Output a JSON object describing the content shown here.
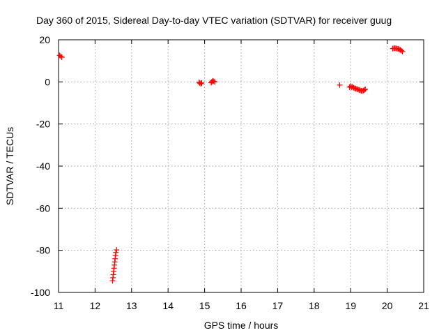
{
  "chart_data": {
    "type": "scatter",
    "title": "Day 360 of 2015, Sidereal Day-to-day VTEC variation (SDTVAR) for receiver guug",
    "xlabel": "GPS time / hours",
    "ylabel": "SDTVAR / TECUs",
    "xlim": [
      11,
      21
    ],
    "ylim": [
      -100,
      20
    ],
    "xticks": [
      11,
      12,
      13,
      14,
      15,
      16,
      17,
      18,
      19,
      20,
      21
    ],
    "yticks": [
      -100,
      -80,
      -60,
      -40,
      -20,
      0,
      20
    ],
    "grid": true,
    "marker": "plus",
    "colors": {
      "series": "#ff0000",
      "grid": "#a0a0a0",
      "axis": "#000000"
    },
    "series": [
      {
        "name": "SDTVAR",
        "points": [
          [
            11.03,
            12.6
          ],
          [
            11.06,
            12.2
          ],
          [
            11.09,
            11.7
          ],
          [
            12.48,
            -94.5
          ],
          [
            12.49,
            -93.0
          ],
          [
            12.5,
            -91.5
          ],
          [
            12.51,
            -90.0
          ],
          [
            12.52,
            -88.5
          ],
          [
            12.53,
            -87.0
          ],
          [
            12.54,
            -85.5
          ],
          [
            12.55,
            -84.0
          ],
          [
            12.56,
            -82.5
          ],
          [
            12.57,
            -81.0
          ],
          [
            12.59,
            -79.8
          ],
          [
            14.85,
            -0.2
          ],
          [
            14.87,
            -0.6
          ],
          [
            14.9,
            -0.9
          ],
          [
            14.92,
            -0.5
          ],
          [
            15.18,
            -0.4
          ],
          [
            15.2,
            0.1
          ],
          [
            15.22,
            0.5
          ],
          [
            15.25,
            0.3
          ],
          [
            15.28,
            0.0
          ],
          [
            18.7,
            -1.5
          ],
          [
            18.97,
            -2.5
          ],
          [
            19.0,
            -2.0
          ],
          [
            19.02,
            -2.6
          ],
          [
            19.05,
            -2.3
          ],
          [
            19.08,
            -2.8
          ],
          [
            19.11,
            -3.0
          ],
          [
            19.14,
            -3.2
          ],
          [
            19.17,
            -3.4
          ],
          [
            19.2,
            -3.6
          ],
          [
            19.23,
            -3.8
          ],
          [
            19.26,
            -4.0
          ],
          [
            19.29,
            -4.2
          ],
          [
            19.32,
            -4.3
          ],
          [
            19.35,
            -4.1
          ],
          [
            19.38,
            -3.8
          ],
          [
            19.4,
            -3.5
          ],
          [
            20.15,
            15.8
          ],
          [
            20.18,
            15.9
          ],
          [
            20.21,
            16.0
          ],
          [
            20.24,
            15.9
          ],
          [
            20.27,
            15.8
          ],
          [
            20.3,
            15.7
          ],
          [
            20.33,
            15.5
          ],
          [
            20.36,
            15.2
          ],
          [
            20.39,
            14.8
          ],
          [
            20.42,
            14.4
          ]
        ]
      }
    ]
  }
}
